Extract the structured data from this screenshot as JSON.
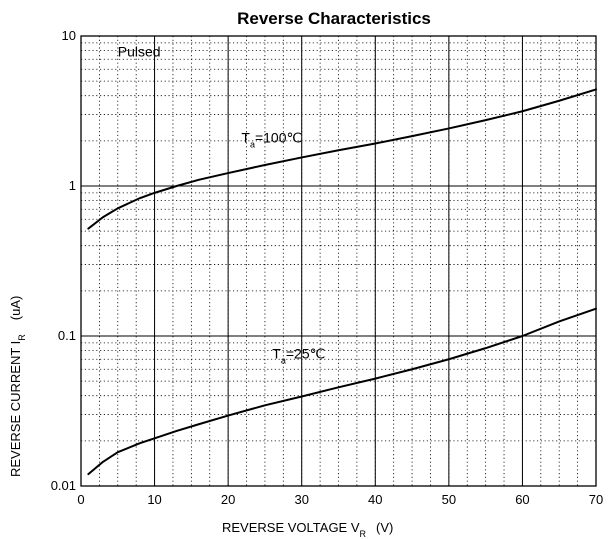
{
  "chart_data": {
    "type": "line",
    "title": "Reverse    Characteristics",
    "xlabel": {
      "main": "REVERSE VOLTAGE    V",
      "sub": "R",
      "unit": "(V)"
    },
    "ylabel": {
      "main": "REVERSE CURRENT   I",
      "sub": "R",
      "unit": "(uA)"
    },
    "xlim": [
      0,
      70
    ],
    "ylim": [
      0.01,
      10
    ],
    "yscale": "log",
    "grid": true,
    "x_ticks": [
      0,
      10,
      20,
      30,
      40,
      50,
      60,
      70
    ],
    "x_tick_labels": [
      "0",
      "10",
      "20",
      "30",
      "40",
      "50",
      "60",
      "70"
    ],
    "y_ticks": [
      0.01,
      0.1,
      1,
      10
    ],
    "y_tick_labels": [
      "0.01",
      "0.1",
      "1",
      "10"
    ],
    "annotations": [
      {
        "text": "Pulsed",
        "x": 5,
        "y": 7.3
      },
      {
        "main": "T",
        "sub": "a",
        "text": "=100℃",
        "x": 21.8,
        "y": 1.95
      },
      {
        "main": "T",
        "sub": "a",
        "text": "=25℃",
        "x": 26,
        "y": 0.071
      }
    ],
    "series": [
      {
        "label_main": "T",
        "label_sub": "a",
        "label_value": "=100℃",
        "x": [
          1,
          3,
          5,
          8,
          10,
          13,
          16,
          20,
          25,
          30,
          35,
          40,
          45,
          50,
          55,
          60,
          65,
          70
        ],
        "y": [
          0.52,
          0.62,
          0.71,
          0.83,
          0.9,
          1.0,
          1.1,
          1.22,
          1.38,
          1.55,
          1.73,
          1.92,
          2.15,
          2.42,
          2.75,
          3.15,
          3.7,
          4.4
        ]
      },
      {
        "label_main": "T",
        "label_sub": "a",
        "label_value": "=25℃",
        "x": [
          1,
          3,
          5,
          8,
          10,
          13,
          16,
          20,
          25,
          30,
          35,
          40,
          45,
          50,
          55,
          60,
          65,
          70
        ],
        "y": [
          0.012,
          0.0145,
          0.0168,
          0.0193,
          0.0208,
          0.0233,
          0.0258,
          0.0295,
          0.0345,
          0.0395,
          0.0455,
          0.052,
          0.06,
          0.07,
          0.083,
          0.1,
          0.125,
          0.152
        ]
      }
    ]
  }
}
